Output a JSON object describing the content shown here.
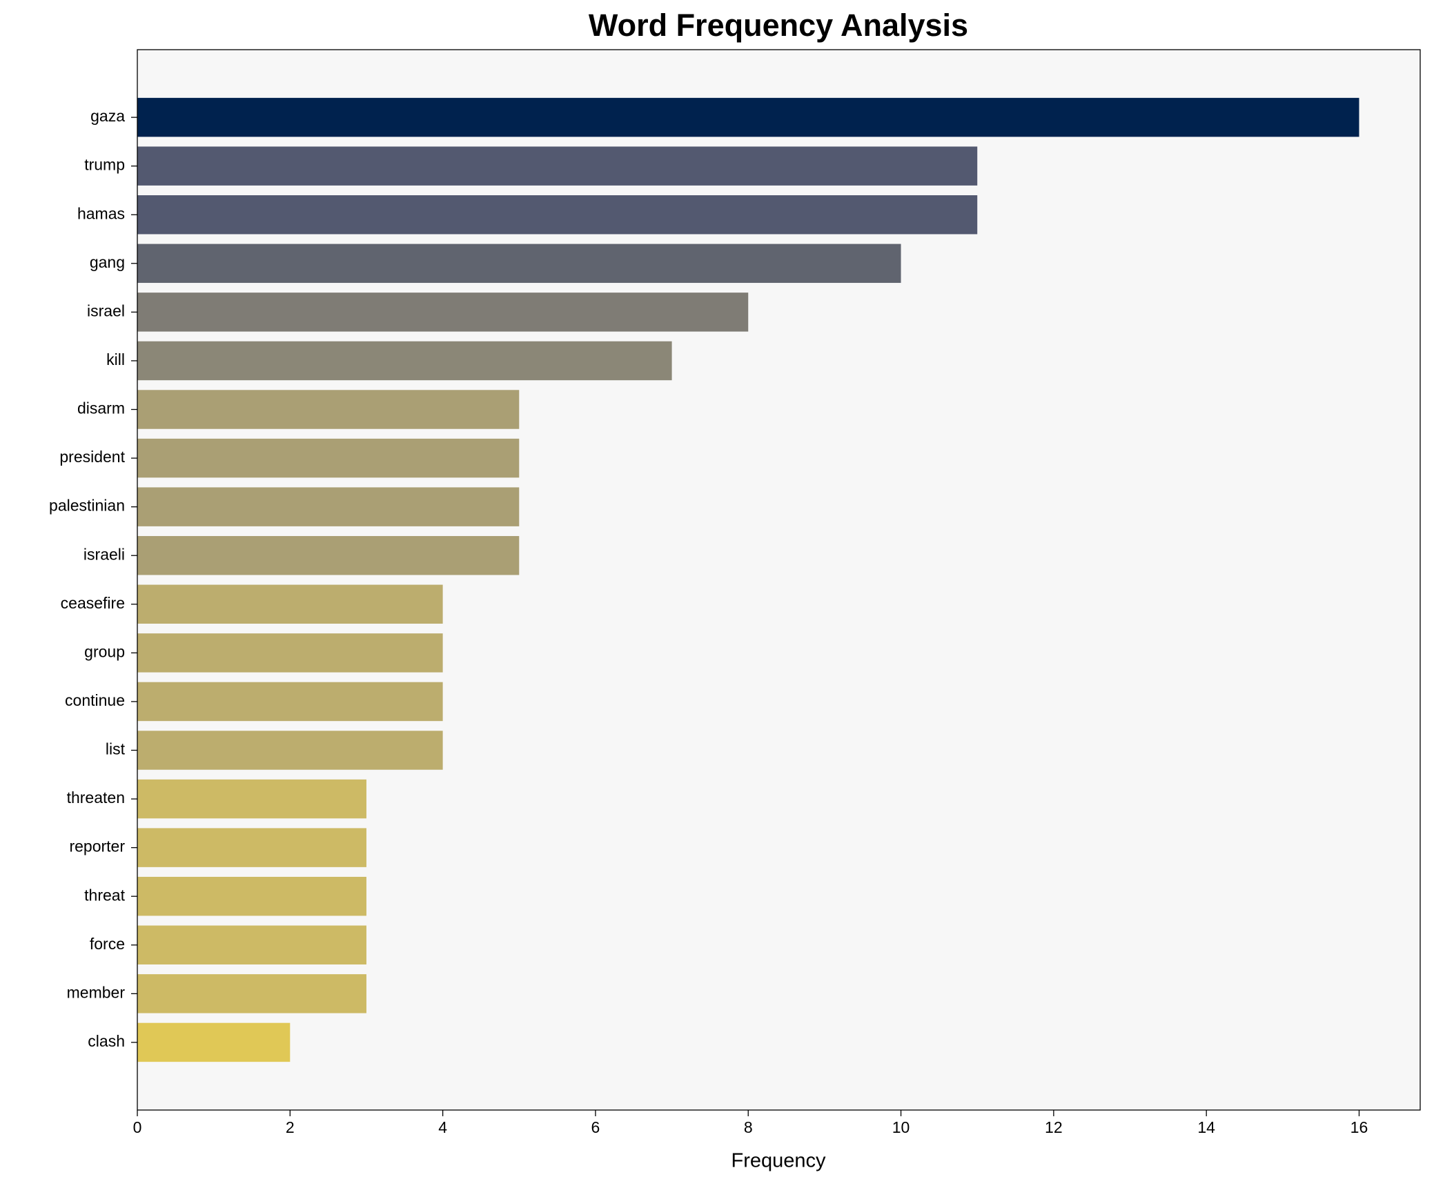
{
  "chart_data": {
    "type": "barh",
    "title": "Word Frequency Analysis",
    "x_label": "Frequency",
    "categories": [
      "gaza",
      "trump",
      "hamas",
      "gang",
      "israel",
      "kill",
      "disarm",
      "president",
      "palestinian",
      "israeli",
      "ceasefire",
      "group",
      "continue",
      "list",
      "threaten",
      "reporter",
      "threat",
      "force",
      "member",
      "clash"
    ],
    "values": [
      16,
      11,
      11,
      10,
      8,
      7,
      5,
      5,
      5,
      5,
      4,
      4,
      4,
      4,
      3,
      3,
      3,
      3,
      3,
      2
    ],
    "colors": [
      "#00224e",
      "#535970",
      "#535970",
      "#60646f",
      "#7f7c75",
      "#8b8777",
      "#aa9f74",
      "#aa9f74",
      "#aa9f74",
      "#aa9f74",
      "#bcad6e",
      "#bcad6e",
      "#bcad6e",
      "#bcad6e",
      "#cdba65",
      "#cdba65",
      "#cdba65",
      "#cdba65",
      "#cdba65",
      "#e0c856"
    ],
    "xlim": [
      0,
      16.8
    ],
    "xticks": [
      0,
      2,
      4,
      6,
      8,
      10,
      12,
      14,
      16
    ]
  }
}
